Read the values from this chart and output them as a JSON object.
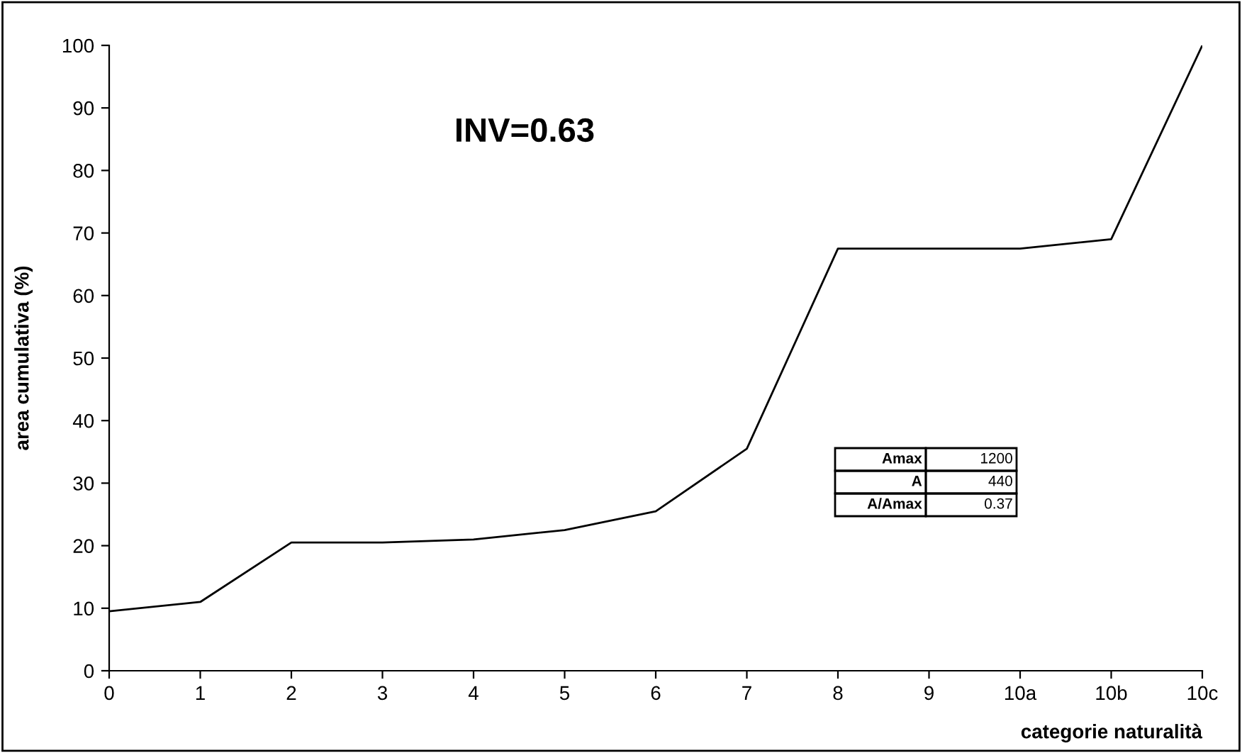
{
  "chart_data": {
    "type": "line",
    "xlabel": "categorie naturalità",
    "ylabel": "area cumulativa (%)",
    "categories": [
      "0",
      "1",
      "2",
      "3",
      "4",
      "5",
      "6",
      "7",
      "8",
      "9",
      "10a",
      "10b",
      "10c"
    ],
    "series": [
      {
        "color": "#000000",
        "values": [
          9.5,
          11,
          20.5,
          20.5,
          21,
          22.5,
          25.5,
          35.5,
          67.5,
          67.5,
          67.5,
          69,
          100
        ]
      }
    ],
    "ylim": [
      0,
      100
    ],
    "yticks": [
      0,
      10,
      20,
      30,
      40,
      50,
      60,
      70,
      80,
      90,
      100
    ],
    "grid": false,
    "legend": false,
    "marker": "none",
    "line_style": "solid",
    "annotations": [
      "INV=0.63",
      "Amax",
      "1200",
      "A",
      "440",
      "A/Amax",
      "0.37"
    ]
  }
}
